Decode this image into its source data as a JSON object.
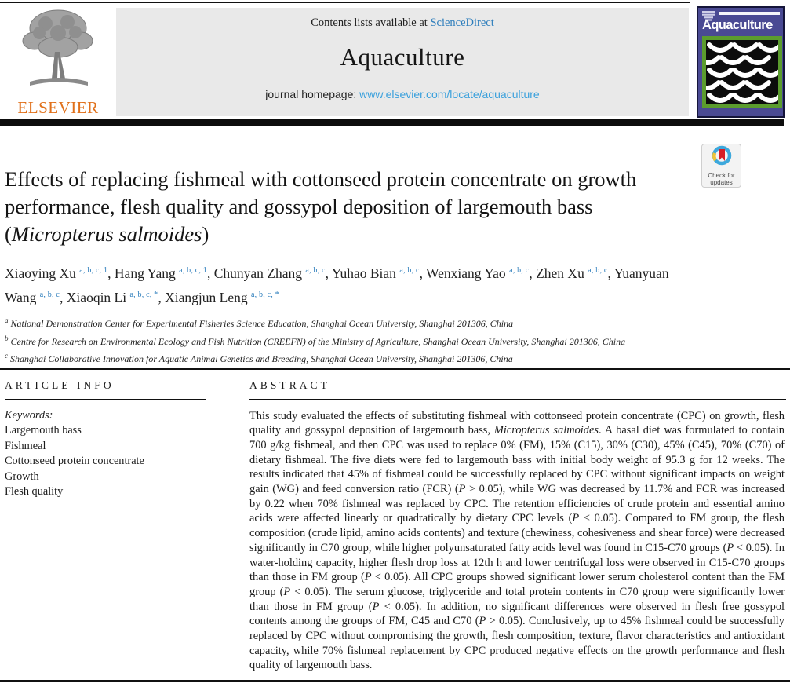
{
  "header": {
    "contents_prefix": "Contents lists available at ",
    "sciencedirect_link": "ScienceDirect",
    "journal_title": "Aquaculture",
    "homepage_prefix": "journal homepage: ",
    "homepage_link": "www.elsevier.com/locate/aquaculture",
    "elsevier_logo_text": "ELSEVIER",
    "cover_title": "Aquaculture"
  },
  "badge": {
    "line1": "Check for",
    "line2": "updates"
  },
  "article": {
    "title_line1": "Effects of replacing fishmeal with cottonseed protein concentrate on growth",
    "title_line2": "performance, flesh quality and gossypol deposition of largemouth bass",
    "title_line3_segments": [
      {
        "t": "("
      },
      {
        "t": "Micropterus salmoides",
        "i": true
      },
      {
        "t": ")"
      }
    ],
    "authors": [
      {
        "name": "Xiaoying Xu",
        "sup": "a, b, c, 1",
        "sep": ", "
      },
      {
        "name": "Hang Yang",
        "sup": "a, b, c, 1",
        "sep": ", "
      },
      {
        "name": "Chunyan Zhang",
        "sup": "a, b, c",
        "sep": ", "
      },
      {
        "name": "Yuhao Bian",
        "sup": "a, b, c",
        "sep": ", "
      },
      {
        "name": "Wenxiang Yao",
        "sup": "a, b, c",
        "sep": ", "
      },
      {
        "name": "Zhen Xu",
        "sup": "a, b, c",
        "sep": ", "
      },
      {
        "name": "Yuanyuan Wang",
        "sup": "a, b, c",
        "sep": ", "
      },
      {
        "name": "Xiaoqin Li",
        "sup": "a, b, c, *",
        "sep": ", "
      },
      {
        "name": "Xiangjun Leng",
        "sup": "a, b, c, *",
        "sep": ""
      }
    ],
    "affiliations": [
      {
        "marker": "a",
        "text": " National Demonstration Center for Experimental Fisheries Science Education, Shanghai Ocean University, Shanghai 201306, China"
      },
      {
        "marker": "b",
        "text": " Centre for Research on Environmental Ecology and Fish Nutrition (CREEFN) of the Ministry of Agriculture, Shanghai Ocean University, Shanghai 201306, China"
      },
      {
        "marker": "c",
        "text": " Shanghai Collaborative Innovation for Aquatic Animal Genetics and Breeding, Shanghai Ocean University, Shanghai 201306, China"
      }
    ]
  },
  "article_info": {
    "heading": "ARTICLE INFO",
    "keywords_label": "Keywords:",
    "keywords": [
      "Largemouth bass",
      "Fishmeal",
      "Cottonseed protein concentrate",
      "Growth",
      "Flesh quality"
    ]
  },
  "abstract": {
    "heading": "ABSTRACT",
    "segments": [
      {
        "t": "This study evaluated the effects of substituting fishmeal with cottonseed protein concentrate (CPC) on growth, flesh quality and gossypol deposition of largemouth bass, "
      },
      {
        "t": "Micropterus salmoides",
        "i": true
      },
      {
        "t": ". A basal diet was formulated to contain 700 g/kg fishmeal, and then CPC was used to replace 0% (FM), 15% (C15), 30% (C30), 45% (C45), 70% (C70) of dietary fishmeal. The five diets were fed to largemouth bass with initial body weight of 95.3 g for 12 weeks. The results indicated that 45% of fishmeal could be successfully replaced by CPC without significant impacts on weight gain (WG) and feed conversion ratio (FCR) ("
      },
      {
        "t": "P",
        "i": true
      },
      {
        "t": " > 0.05), while WG was decreased by 11.7% and FCR was increased by 0.22 when 70% fishmeal was replaced by CPC. The retention efficiencies of crude protein and essential amino acids were affected linearly or quadratically by dietary CPC levels ("
      },
      {
        "t": "P",
        "i": true
      },
      {
        "t": " < 0.05). Compared to FM group, the flesh composition (crude lipid, amino acids contents) and texture (chewiness, cohesiveness and shear force) were decreased significantly in C70 group, while higher polyunsaturated fatty acids level was found in C15-C70 groups ("
      },
      {
        "t": "P",
        "i": true
      },
      {
        "t": " < 0.05). In water-holding capacity, higher flesh drop loss at 12th h and lower centrifugal loss were observed in C15-C70 groups than those in FM group ("
      },
      {
        "t": "P",
        "i": true
      },
      {
        "t": " < 0.05). All CPC groups showed significant lower serum cholesterol content than the FM group ("
      },
      {
        "t": "P",
        "i": true
      },
      {
        "t": " < 0.05). The serum glucose, triglyceride and total protein contents in C70 group were significantly lower than those in FM group ("
      },
      {
        "t": "P",
        "i": true
      },
      {
        "t": " < 0.05). In addition, no significant differences were observed in flesh free gossypol contents among the groups of FM, C45 and C70 ("
      },
      {
        "t": "P",
        "i": true
      },
      {
        "t": " > 0.05). Conclusively, up to 45% fishmeal could be successfully replaced by CPC without compromising the growth, flesh composition, texture, flavor characteristics and antioxidant capacity, while 70% fishmeal replacement by CPC produced negative effects on the growth performance and flesh quality of largemouth bass."
      }
    ]
  },
  "colors": {
    "sciencedirect_link_blue": "#2E7EBC",
    "homepage_link_blue": "#3AA0DC",
    "author_superscript_blue": "#2E7EBC",
    "elsevier_orange": "#E0701A",
    "cover_blue": "#4A4A93",
    "cover_green": "#5B9C2E",
    "badge_ring_blue": "#3DA8DC",
    "badge_ring_yellow": "#F0C437",
    "badge_bookmark_red": "#D61F26",
    "banner_gray": "#E9E9E9"
  }
}
